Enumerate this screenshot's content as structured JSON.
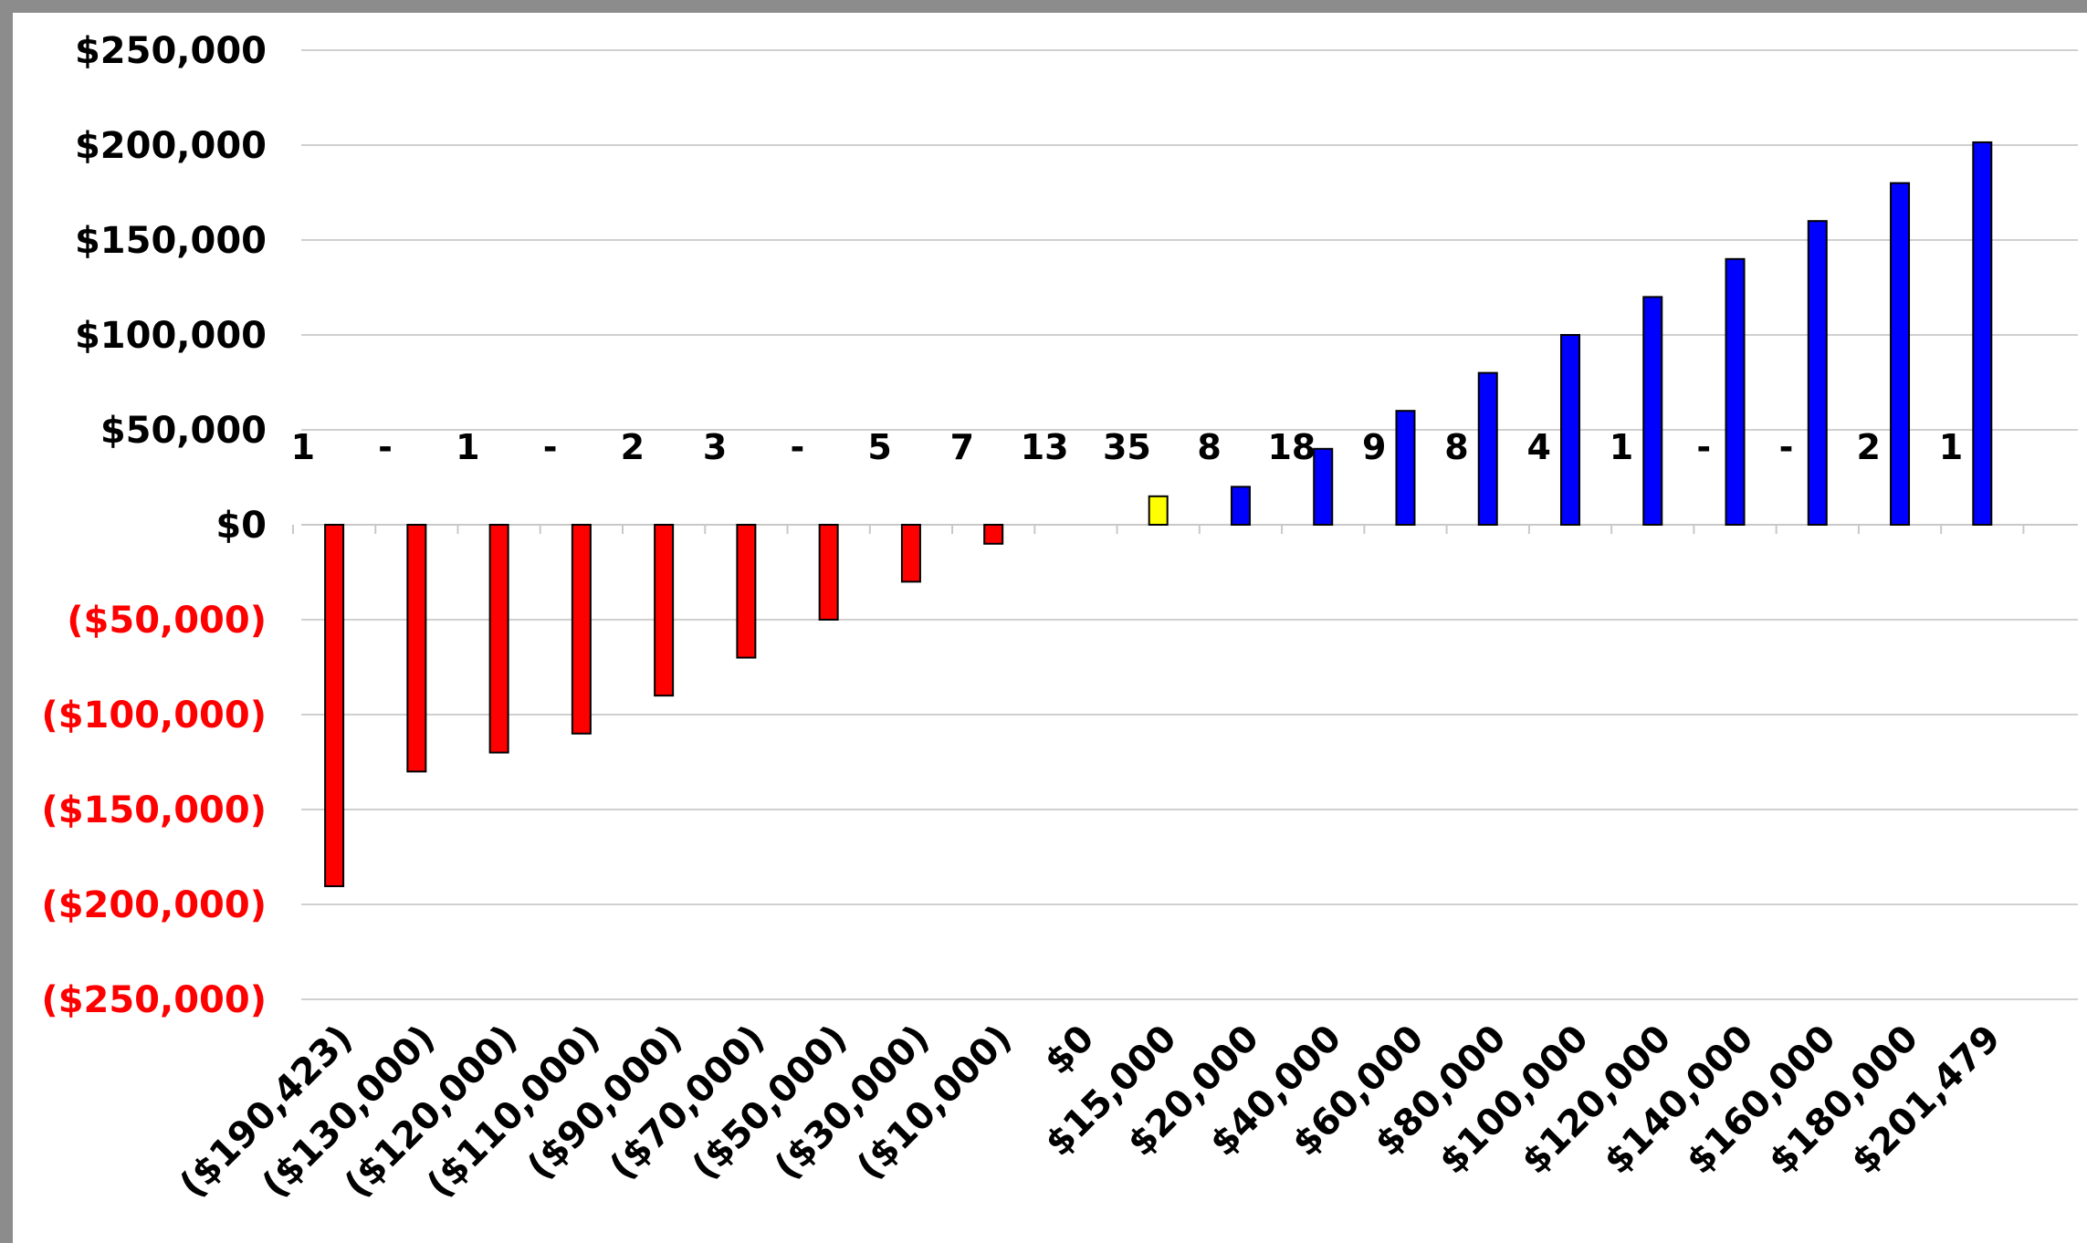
{
  "chart_data": {
    "type": "bar",
    "title": "",
    "xlabel": "",
    "ylabel": "",
    "ylim": [
      -250000,
      250000
    ],
    "y_ticks": [
      250000,
      200000,
      150000,
      100000,
      50000,
      0,
      -50000,
      -100000,
      -150000,
      -200000,
      -250000
    ],
    "y_tick_labels": [
      "$250,000",
      "$200,000",
      "$150,000",
      "$100,000",
      "$50,000",
      "$0",
      "($50,000)",
      "($100,000)",
      "($150,000)",
      "($200,000)",
      "($250,000)"
    ],
    "grid": true,
    "legend": "none",
    "categories": [
      "($190,423)",
      "($130,000)",
      "($120,000)",
      "($110,000)",
      "($90,000)",
      "($70,000)",
      "($50,000)",
      "($30,000)",
      "($10,000)",
      "$0",
      "$15,000",
      "$20,000",
      "$40,000",
      "$60,000",
      "$80,000",
      "$100,000",
      "$120,000",
      "$140,000",
      "$160,000",
      "$180,000",
      "$201,479"
    ],
    "values": [
      -190423,
      -130000,
      -120000,
      -110000,
      -90000,
      -70000,
      -50000,
      -30000,
      -10000,
      0,
      15000,
      20000,
      40000,
      60000,
      80000,
      100000,
      120000,
      140000,
      160000,
      180000,
      201479
    ],
    "counts": [
      "1",
      "-",
      "1",
      "-",
      "2",
      "3",
      "-",
      "5",
      "7",
      "13",
      "35",
      "8",
      "18",
      "9",
      "8",
      "4",
      "1",
      "-",
      "-",
      "2",
      "1"
    ],
    "colors": {
      "negative": "#ff0000",
      "zero_neighbor": "#ffff00",
      "positive": "#0000ff",
      "negative_tick_text": "#ff0000",
      "tick_text": "#000000",
      "grid": "#d0d0d0"
    },
    "bar_colors": [
      "negative",
      "negative",
      "negative",
      "negative",
      "negative",
      "negative",
      "negative",
      "negative",
      "negative",
      "negative",
      "zero_neighbor",
      "positive",
      "positive",
      "positive",
      "positive",
      "positive",
      "positive",
      "positive",
      "positive",
      "positive",
      "positive"
    ]
  }
}
